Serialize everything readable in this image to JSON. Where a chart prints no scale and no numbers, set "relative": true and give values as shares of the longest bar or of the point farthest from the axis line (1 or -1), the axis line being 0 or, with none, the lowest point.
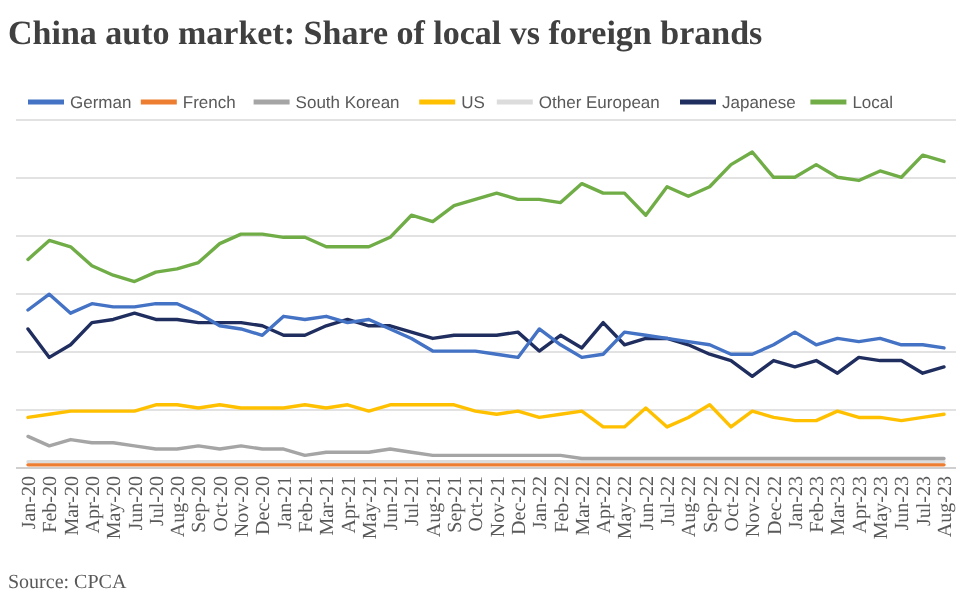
{
  "chart_data": {
    "type": "line",
    "title": "China auto market: Share of local vs foreign brands",
    "relative": true,
    "grid": true,
    "legend": "top",
    "marker": "none",
    "line_style": "solid",
    "categories": [
      "Jan-20",
      "Feb-20",
      "Mar-20",
      "Apr-20",
      "May-20",
      "Jun-20",
      "Jul-20",
      "Aug-20",
      "Sep-20",
      "Oct-20",
      "Nov-20",
      "Dec-20",
      "Jan-21",
      "Feb-21",
      "Mar-21",
      "Apr-21",
      "May-21",
      "Jun-21",
      "Jul-21",
      "Aug-21",
      "Sep-21",
      "Oct-21",
      "Nov-21",
      "Dec-21",
      "Jan-22",
      "Feb-22",
      "Mar-22",
      "Apr-22",
      "May-22",
      "Jun-22",
      "Jul-22",
      "Aug-22",
      "Sep-22",
      "Oct-22",
      "Nov-22",
      "Dec-22",
      "Jan-23",
      "Feb-23",
      "Mar-23",
      "Apr-23",
      "May-23",
      "Jun-23",
      "Jul-23",
      "Aug-23"
    ],
    "series": [
      {
        "name": "German",
        "color": "#4472c4",
        "values": [
          0.5,
          0.55,
          0.49,
          0.52,
          0.51,
          0.51,
          0.52,
          0.52,
          0.49,
          0.45,
          0.44,
          0.42,
          0.48,
          0.47,
          0.48,
          0.46,
          0.47,
          0.44,
          0.41,
          0.37,
          0.37,
          0.37,
          0.36,
          0.35,
          0.44,
          0.39,
          0.35,
          0.36,
          0.43,
          0.42,
          0.41,
          0.4,
          0.39,
          0.36,
          0.36,
          0.39,
          0.43,
          0.39,
          0.41,
          0.4,
          0.41,
          0.39,
          0.39,
          0.38
        ]
      },
      {
        "name": "French",
        "color": "#ed7d31",
        "values": [
          0.01,
          0.01,
          0.01,
          0.01,
          0.01,
          0.01,
          0.01,
          0.01,
          0.01,
          0.01,
          0.01,
          0.01,
          0.01,
          0.01,
          0.01,
          0.01,
          0.01,
          0.01,
          0.01,
          0.01,
          0.01,
          0.01,
          0.01,
          0.01,
          0.01,
          0.01,
          0.01,
          0.01,
          0.01,
          0.01,
          0.01,
          0.01,
          0.01,
          0.01,
          0.01,
          0.01,
          0.01,
          0.01,
          0.01,
          0.01,
          0.01,
          0.01,
          0.01,
          0.01
        ]
      },
      {
        "name": "South Korean",
        "color": "#a5a5a5",
        "values": [
          0.1,
          0.07,
          0.09,
          0.08,
          0.08,
          0.07,
          0.06,
          0.06,
          0.07,
          0.06,
          0.07,
          0.06,
          0.06,
          0.04,
          0.05,
          0.05,
          0.05,
          0.06,
          0.05,
          0.04,
          0.04,
          0.04,
          0.04,
          0.04,
          0.04,
          0.04,
          0.03,
          0.03,
          0.03,
          0.03,
          0.03,
          0.03,
          0.03,
          0.03,
          0.03,
          0.03,
          0.03,
          0.03,
          0.03,
          0.03,
          0.03,
          0.03,
          0.03,
          0.03
        ]
      },
      {
        "name": "US",
        "color": "#ffc000",
        "values": [
          0.16,
          0.17,
          0.18,
          0.18,
          0.18,
          0.18,
          0.2,
          0.2,
          0.19,
          0.2,
          0.19,
          0.19,
          0.19,
          0.2,
          0.19,
          0.2,
          0.18,
          0.2,
          0.2,
          0.2,
          0.2,
          0.18,
          0.17,
          0.18,
          0.16,
          0.17,
          0.18,
          0.13,
          0.13,
          0.19,
          0.13,
          0.16,
          0.2,
          0.13,
          0.18,
          0.16,
          0.15,
          0.15,
          0.18,
          0.16,
          0.16,
          0.15,
          0.16,
          0.17
        ]
      },
      {
        "name": "Other European",
        "color": "#dcdcdc",
        "values": [
          0.02,
          0.02,
          0.02,
          0.02,
          0.02,
          0.02,
          0.02,
          0.02,
          0.02,
          0.02,
          0.02,
          0.02,
          0.02,
          0.02,
          0.02,
          0.02,
          0.02,
          0.02,
          0.02,
          0.02,
          0.02,
          0.02,
          0.02,
          0.02,
          0.02,
          0.02,
          0.02,
          0.02,
          0.02,
          0.02,
          0.02,
          0.02,
          0.02,
          0.02,
          0.02,
          0.02,
          0.02,
          0.02,
          0.02,
          0.02,
          0.02,
          0.02,
          0.02,
          0.02
        ]
      },
      {
        "name": "Japanese",
        "color": "#1f2e5e",
        "values": [
          0.44,
          0.35,
          0.39,
          0.46,
          0.47,
          0.49,
          0.47,
          0.47,
          0.46,
          0.46,
          0.46,
          0.45,
          0.42,
          0.42,
          0.45,
          0.47,
          0.45,
          0.45,
          0.43,
          0.41,
          0.42,
          0.42,
          0.42,
          0.43,
          0.37,
          0.42,
          0.38,
          0.46,
          0.39,
          0.41,
          0.41,
          0.39,
          0.36,
          0.34,
          0.29,
          0.34,
          0.32,
          0.34,
          0.3,
          0.35,
          0.34,
          0.34,
          0.3,
          0.32
        ]
      },
      {
        "name": "Local",
        "color": "#70ad47",
        "values": [
          0.66,
          0.72,
          0.7,
          0.64,
          0.61,
          0.59,
          0.62,
          0.63,
          0.65,
          0.71,
          0.74,
          0.74,
          0.73,
          0.73,
          0.7,
          0.7,
          0.7,
          0.73,
          0.8,
          0.78,
          0.83,
          0.85,
          0.87,
          0.85,
          0.85,
          0.84,
          0.9,
          0.87,
          0.87,
          0.8,
          0.89,
          0.86,
          0.89,
          0.96,
          1,
          0.92,
          0.92,
          0.96,
          0.92,
          0.91,
          0.94,
          0.92,
          0.99,
          0.97
        ]
      }
    ],
    "annotations": [
      "Source: CPCA"
    ]
  }
}
